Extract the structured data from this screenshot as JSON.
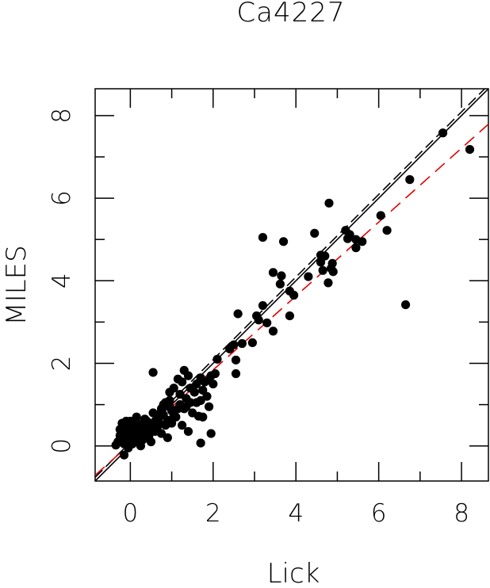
{
  "chart_data": {
    "type": "scatter",
    "title": "Ca4227",
    "xlabel": "Lick",
    "ylabel": "MILES",
    "xlim": [
      -0.85,
      8.65
    ],
    "ylim": [
      -0.85,
      8.65
    ],
    "xticks": [
      0,
      2,
      4,
      6,
      8
    ],
    "yticks": [
      0,
      2,
      4,
      6,
      8
    ],
    "minor_ticks": [
      1,
      3,
      5,
      7
    ],
    "grid": false,
    "legend": "none",
    "colors": {
      "points": "#000000",
      "identity": "#000000",
      "offset": "#000000",
      "fit": "#e00000"
    },
    "lines": [
      {
        "style": "solid",
        "color": "#000000",
        "slope": 1.0,
        "intercept": 0.0
      },
      {
        "style": "dashed",
        "color": "#000000",
        "slope": 1.0,
        "intercept": 0.09
      },
      {
        "style": "dashed",
        "color": "#e00000",
        "slope": 0.895,
        "intercept": 0.05
      }
    ],
    "points": [
      [
        7.55,
        7.58
      ],
      [
        8.2,
        7.18
      ],
      [
        6.75,
        6.45
      ],
      [
        6.05,
        5.58
      ],
      [
        6.2,
        5.22
      ],
      [
        6.65,
        3.42
      ],
      [
        4.8,
        5.88
      ],
      [
        5.2,
        5.22
      ],
      [
        5.3,
        5.12
      ],
      [
        5.25,
        5.02
      ],
      [
        5.45,
        5.0
      ],
      [
        5.6,
        4.95
      ],
      [
        5.45,
        4.8
      ],
      [
        4.45,
        5.15
      ],
      [
        4.6,
        4.62
      ],
      [
        4.7,
        4.6
      ],
      [
        4.6,
        4.45
      ],
      [
        4.88,
        4.42
      ],
      [
        4.85,
        4.3
      ],
      [
        4.9,
        4.22
      ],
      [
        4.65,
        4.25
      ],
      [
        4.78,
        3.95
      ],
      [
        4.3,
        4.1
      ],
      [
        3.2,
        5.05
      ],
      [
        3.7,
        4.95
      ],
      [
        3.45,
        4.2
      ],
      [
        3.65,
        4.12
      ],
      [
        3.62,
        3.92
      ],
      [
        3.85,
        3.75
      ],
      [
        3.95,
        3.65
      ],
      [
        3.85,
        3.15
      ],
      [
        3.2,
        3.4
      ],
      [
        3.05,
        3.15
      ],
      [
        3.1,
        3.05
      ],
      [
        3.3,
        2.98
      ],
      [
        3.45,
        2.78
      ],
      [
        2.6,
        3.2
      ],
      [
        2.95,
        2.5
      ],
      [
        2.7,
        2.48
      ],
      [
        2.5,
        2.45
      ],
      [
        2.4,
        2.35
      ],
      [
        2.55,
        2.08
      ],
      [
        2.55,
        1.75
      ],
      [
        2.1,
        2.1
      ],
      [
        2.05,
        1.75
      ],
      [
        1.95,
        1.7
      ],
      [
        2.0,
        1.5
      ],
      [
        1.8,
        1.55
      ],
      [
        1.75,
        1.35
      ],
      [
        1.85,
        1.2
      ],
      [
        1.7,
        1.1
      ],
      [
        1.55,
        1.3
      ],
      [
        1.6,
        1.05
      ],
      [
        1.9,
        0.95
      ],
      [
        1.45,
        1.4
      ],
      [
        1.35,
        1.15
      ],
      [
        1.25,
        1.55
      ],
      [
        1.3,
        1.83
      ],
      [
        1.4,
        1.7
      ],
      [
        1.15,
        1.62
      ],
      [
        1.05,
        1.4
      ],
      [
        0.95,
        1.3
      ],
      [
        0.55,
        1.78
      ],
      [
        1.75,
        0.7
      ],
      [
        1.65,
        0.72
      ],
      [
        1.95,
        0.3
      ],
      [
        1.7,
        0.07
      ],
      [
        1.4,
        0.35
      ],
      [
        1.25,
        0.5
      ],
      [
        1.15,
        0.9
      ],
      [
        1.05,
        0.75
      ],
      [
        0.95,
        0.95
      ],
      [
        0.85,
        1.05
      ],
      [
        0.8,
        0.75
      ],
      [
        0.7,
        0.55
      ],
      [
        0.6,
        0.6
      ],
      [
        0.75,
        0.9
      ],
      [
        0.55,
        0.8
      ],
      [
        0.45,
        0.55
      ],
      [
        0.5,
        0.35
      ],
      [
        0.4,
        0.6
      ],
      [
        0.35,
        0.45
      ],
      [
        0.25,
        0.52
      ],
      [
        0.3,
        0.3
      ],
      [
        0.2,
        0.4
      ],
      [
        0.15,
        0.25
      ],
      [
        0.1,
        0.5
      ],
      [
        0.05,
        0.35
      ],
      [
        0.0,
        0.2
      ],
      [
        -0.05,
        0.45
      ],
      [
        -0.1,
        0.3
      ],
      [
        -0.15,
        0.05
      ],
      [
        -0.2,
        0.55
      ],
      [
        -0.25,
        0.25
      ],
      [
        -0.3,
        0.1
      ],
      [
        -0.35,
        0.02
      ],
      [
        -0.15,
        -0.22
      ],
      [
        -0.05,
        0.15
      ],
      [
        0.05,
        0.05
      ],
      [
        0.2,
        0.1
      ],
      [
        0.3,
        0.15
      ],
      [
        0.45,
        0.25
      ],
      [
        0.6,
        0.35
      ],
      [
        0.65,
        0.45
      ],
      [
        0.85,
        0.5
      ],
      [
        0.9,
        0.62
      ],
      [
        1.0,
        0.55
      ],
      [
        1.1,
        0.7
      ],
      [
        1.2,
        1.0
      ],
      [
        1.3,
        0.9
      ],
      [
        1.45,
        1.05
      ],
      [
        1.5,
        0.8
      ],
      [
        1.6,
        1.5
      ],
      [
        1.7,
        1.65
      ],
      [
        1.9,
        1.6
      ],
      [
        0.7,
        0.7
      ],
      [
        0.35,
        0.65
      ],
      [
        -0.1,
        0.6
      ],
      [
        0.0,
        0.6
      ],
      [
        0.1,
        0.15
      ],
      [
        -0.25,
        0.4
      ],
      [
        0.5,
        0.1
      ],
      [
        0.75,
        0.3
      ],
      [
        0.9,
        0.2
      ],
      [
        0.15,
        0.7
      ],
      [
        1.2,
        1.25
      ],
      [
        0.95,
        1.1
      ],
      [
        0.4,
        0.2
      ],
      [
        -0.05,
        -0.05
      ],
      [
        0.25,
        0.0
      ],
      [
        0.55,
        0.5
      ],
      [
        1.0,
        0.85
      ],
      [
        1.35,
        0.95
      ],
      [
        0.65,
        0.75
      ],
      [
        0.8,
        1.0
      ],
      [
        0.45,
        0.4
      ],
      [
        -0.2,
        0.15
      ]
    ]
  }
}
